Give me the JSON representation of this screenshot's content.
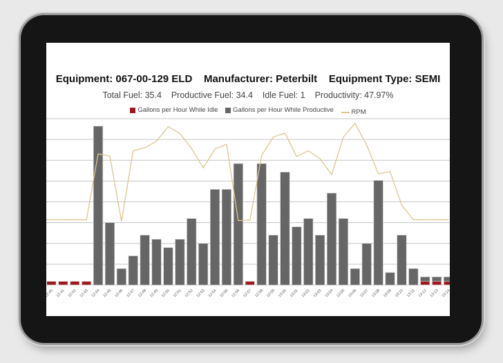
{
  "header": {
    "equipment": "Equipment: 067-00-129 ELD",
    "manufacturer": "Manufacturer: Peterbilt",
    "equipment_type": "Equipment Type: SEMI"
  },
  "summary": {
    "total_fuel": "Total Fuel: 35.4",
    "productive_fuel": "Productive Fuel: 34.4",
    "idle_fuel": "Idle Fuel: 1",
    "productivity": "Productivity: 47.97%"
  },
  "colors": {
    "idle": "#9b1c20",
    "productive": "#666666",
    "rpm": "#dcc68e",
    "grid": "#c4c4c4"
  },
  "chart_data": {
    "type": "bar",
    "stacked": true,
    "grid": true,
    "legend_position": "top",
    "ylim": [
      0,
      8
    ],
    "categories": [
      "12:40",
      "12:41",
      "12:42",
      "12:43",
      "12:44",
      "12:45",
      "12:46",
      "12:47",
      "12:48",
      "12:49",
      "12:50",
      "12:51",
      "12:52",
      "12:53",
      "12:54",
      "12:55",
      "12:56",
      "12:57",
      "12:58",
      "12:59",
      "13:00",
      "13:01",
      "13:02",
      "13:03",
      "13:04",
      "13:05",
      "13:06",
      "13:07",
      "13:08",
      "13:09",
      "13:10",
      "13:11",
      "13:12",
      "13:13",
      "13:14"
    ],
    "series": [
      {
        "name": "Gallons per Hour While Idle",
        "type": "bar",
        "values": [
          0.18,
          0.18,
          0.18,
          0.18,
          0,
          0,
          0,
          0,
          0,
          0,
          0,
          0,
          0,
          0,
          0,
          0,
          0,
          0.18,
          0,
          0,
          0,
          0,
          0,
          0,
          0,
          0,
          0,
          0,
          0,
          0,
          0,
          0,
          0.18,
          0.18,
          0.18
        ]
      },
      {
        "name": "Gallons per Hour While Productive",
        "type": "bar",
        "values": [
          0,
          0,
          0,
          0,
          7.64,
          3.0,
          0.79,
          1.4,
          2.4,
          2.2,
          1.8,
          2.2,
          3.2,
          2.0,
          4.6,
          4.6,
          5.84,
          0,
          5.84,
          2.4,
          5.43,
          2.8,
          3.2,
          2.4,
          4.42,
          3.2,
          0.79,
          2.0,
          5.03,
          0.6,
          2.4,
          0.79,
          0.21,
          0.21,
          0.21
        ]
      },
      {
        "name": "RPM",
        "type": "line",
        "values": [
          3.14,
          3.14,
          3.14,
          3.14,
          6.31,
          6.2,
          3.07,
          6.46,
          6.6,
          6.92,
          7.62,
          7.29,
          6.57,
          5.64,
          6.54,
          6.77,
          3.1,
          3.12,
          6.23,
          7.12,
          7.31,
          6.18,
          6.46,
          6.07,
          5.31,
          7.12,
          7.77,
          6.73,
          5.34,
          5.46,
          3.84,
          3.14,
          3.14,
          3.14,
          3.14
        ]
      }
    ]
  }
}
